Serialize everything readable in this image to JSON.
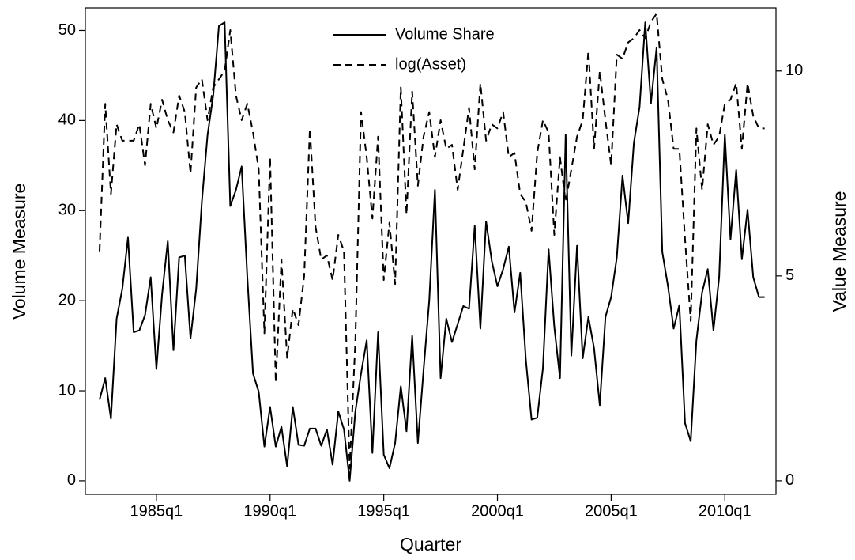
{
  "chart_data": {
    "type": "line",
    "x_label": "Quarter",
    "y_label": "Volume Measure",
    "y2_label": "Value Measure",
    "legend": "top",
    "xlim": [
      87.5,
      209
    ],
    "xticks": [
      {
        "value": 100,
        "label": "1985q1"
      },
      {
        "value": 120,
        "label": "1990q1"
      },
      {
        "value": 140,
        "label": "1995q1"
      },
      {
        "value": 160,
        "label": "2000q1"
      },
      {
        "value": 180,
        "label": "2005q1"
      },
      {
        "value": 200,
        "label": "2010q1"
      }
    ],
    "ylim": [
      -1.5,
      52.5
    ],
    "yticks": [
      0,
      10,
      20,
      30,
      40,
      50
    ],
    "y2lim": [
      -0.33,
      11.54
    ],
    "y2ticks": [
      0,
      5,
      10
    ],
    "x": [
      90,
      91,
      92,
      93,
      94,
      95,
      96,
      97,
      98,
      99,
      100,
      101,
      102,
      103,
      104,
      105,
      106,
      107,
      108,
      109,
      110,
      111,
      112,
      113,
      114,
      115,
      116,
      117,
      118,
      119,
      120,
      121,
      122,
      123,
      124,
      125,
      126,
      127,
      128,
      129,
      130,
      131,
      132,
      133,
      134,
      135,
      136,
      137,
      138,
      139,
      140,
      141,
      142,
      143,
      144,
      145,
      146,
      147,
      148,
      149,
      150,
      151,
      152,
      153,
      154,
      155,
      156,
      157,
      158,
      159,
      160,
      161,
      162,
      163,
      164,
      165,
      166,
      167,
      168,
      169,
      170,
      171,
      172,
      173,
      174,
      175,
      176,
      177,
      178,
      179,
      180,
      181,
      182,
      183,
      184,
      185,
      186,
      187,
      188,
      189,
      190,
      191,
      192,
      193,
      194,
      195,
      196,
      197,
      198,
      199,
      200,
      201,
      202,
      203,
      204,
      205,
      206,
      207
    ],
    "series": [
      {
        "name": "Volume Share",
        "color": "#000000",
        "style": "solid",
        "axis": "y",
        "values": [
          9.0,
          11.4,
          6.9,
          18,
          21.3,
          27,
          16.5,
          16.7,
          18.4,
          22.6,
          12.4,
          20.7,
          26.6,
          14.5,
          24.8,
          25,
          15.8,
          21.3,
          31,
          38.4,
          42.8,
          50.5,
          50.9,
          30.5,
          32.3,
          34.9,
          22.6,
          11.9,
          9.9,
          3.8,
          8.2,
          3.8,
          6.0,
          1.6,
          8.2,
          4.0,
          3.9,
          5.8,
          5.8,
          3.9,
          5.7,
          1.8,
          7.7,
          5.7,
          0,
          7.7,
          11.9,
          15.6,
          3.1,
          16.5,
          2.9,
          1.4,
          4.2,
          10.5,
          5.5,
          16.1,
          4.2,
          12.3,
          20,
          32.3,
          11.4,
          18,
          15.4,
          17.4,
          19.4,
          19.1,
          28.3,
          16.9,
          28.8,
          24.4,
          21.6,
          23.5,
          26,
          18.7,
          23.1,
          13.4,
          6.8,
          7.0,
          12.5,
          25.7,
          17.1,
          11.4,
          38.4,
          13.9,
          26.1,
          13.6,
          18.2,
          14.7,
          8.4,
          18.2,
          20.4,
          24.8,
          33.9,
          28.6,
          37.5,
          41.5,
          50.9,
          41.9,
          48.1,
          25.4,
          21.6,
          16.9,
          19.5,
          6.4,
          4.4,
          15.6,
          20.9,
          23.5,
          16.7,
          22.6,
          38.4,
          26.8,
          34.5,
          24.6,
          30.1,
          22.6,
          20.4,
          20.4
        ]
      },
      {
        "name": "log(Asset)",
        "color": "#000000",
        "style": "dashed",
        "axis": "y2",
        "values": [
          5.6,
          9.2,
          7.0,
          8.7,
          8.3,
          8.3,
          8.3,
          8.7,
          7.7,
          9.2,
          8.6,
          9.3,
          8.8,
          8.5,
          9.4,
          9.0,
          7.5,
          9.6,
          9.8,
          8.8,
          9.6,
          9.8,
          10.0,
          11.0,
          9.4,
          8.8,
          9.2,
          8.5,
          7.6,
          3.6,
          7.9,
          2.4,
          5.4,
          3.0,
          4.2,
          3.8,
          5.0,
          8.6,
          6.2,
          5.4,
          5.5,
          4.9,
          6.0,
          5.6,
          0.3,
          3.4,
          9.0,
          7.9,
          6.4,
          8.4,
          4.9,
          6.3,
          4.8,
          9.6,
          6.5,
          9.5,
          7.2,
          8.4,
          9.0,
          7.9,
          8.8,
          8.1,
          8.2,
          7.1,
          8.1,
          9.1,
          7.6,
          9.7,
          8.3,
          8.7,
          8.6,
          9.0,
          7.9,
          8.0,
          7.0,
          6.8,
          6.1,
          8.0,
          8.8,
          8.5,
          6.0,
          7.9,
          6.8,
          7.6,
          8.4,
          8.8,
          10.5,
          8.1,
          10.0,
          8.8,
          7.7,
          10.4,
          10.3,
          10.7,
          10.8,
          11.0,
          10.8,
          11.2,
          11.4,
          9.8,
          9.3,
          8.1,
          8.1,
          5.9,
          3.9,
          8.6,
          7.1,
          8.7,
          8.2,
          8.4,
          9.2,
          9.3,
          9.7,
          8.1,
          9.7,
          8.9,
          8.6,
          8.6
        ]
      }
    ]
  }
}
